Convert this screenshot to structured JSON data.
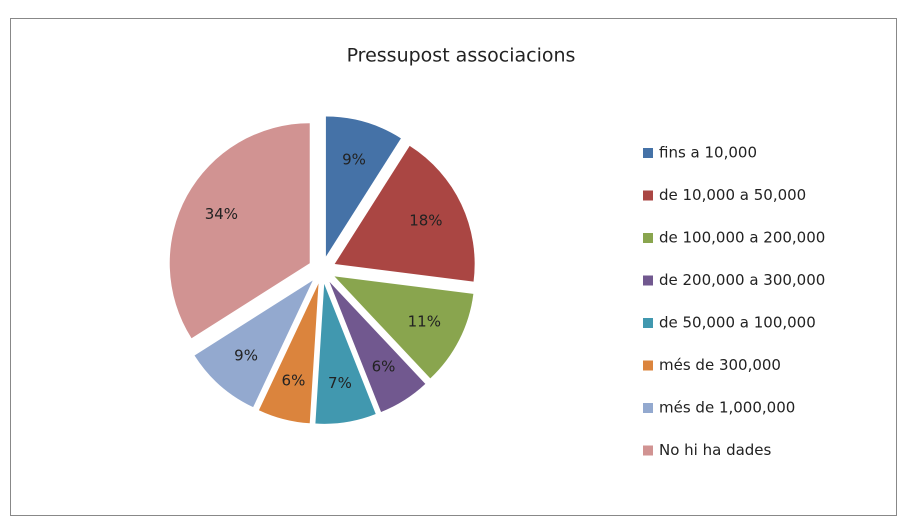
{
  "chart_data": {
    "type": "pie",
    "title": "Pressupost associacions",
    "categories": [
      "fins a 10,000",
      "de 10,000 a 50,000",
      "de 100,000 a 200,000",
      "de 200,000 a 300,000",
      "de 50,000 a 100,000",
      "més de 300,000",
      "més de 1,000,000",
      "No hi ha dades"
    ],
    "values": [
      9,
      18,
      11,
      6,
      7,
      6,
      9,
      34
    ],
    "value_labels": [
      "9%",
      "18%",
      "11%",
      "6%",
      "7%",
      "6%",
      "9%",
      "34%"
    ],
    "colors": [
      "#4572a7",
      "#aa4643",
      "#89a54e",
      "#71588f",
      "#4198af",
      "#db843d",
      "#93a9cf",
      "#d19392"
    ],
    "legend": "right"
  }
}
